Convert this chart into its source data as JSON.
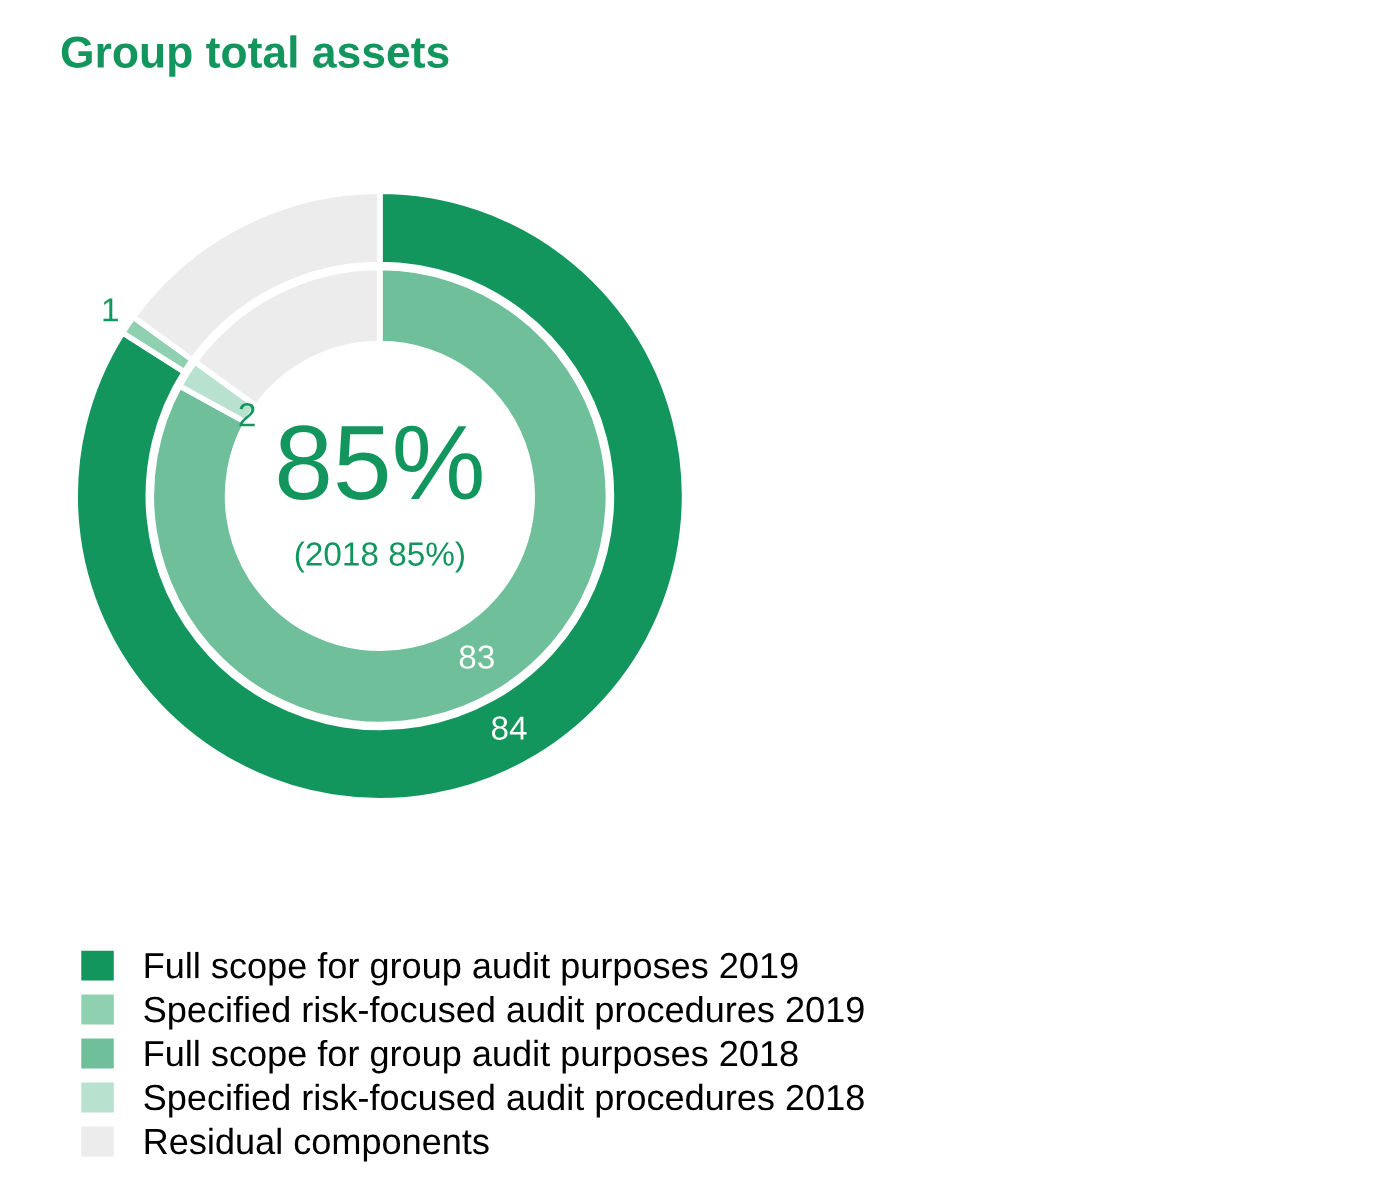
{
  "chart_data": {
    "type": "donut",
    "title": "Group total assets",
    "categories": [
      "Full scope for group audit purposes 2019",
      "Specified risk-focused audit procedures 2019",
      "Full scope for group audit purposes 2018",
      "Specified risk-focused audit procedures 2018",
      "Residual components"
    ],
    "colors": [
      "#12965e",
      "#8fd0b0",
      "#6fbf9a",
      "#b8e2cf",
      "#ececec"
    ],
    "series": [
      {
        "values": [
          null,
          null,
          83,
          2,
          15
        ],
        "value_labels": [
          null,
          null,
          "83",
          "2",
          null
        ]
      },
      {
        "values": [
          84,
          1,
          null,
          null,
          15
        ],
        "value_labels": [
          "84",
          "1",
          null,
          null,
          null
        ]
      }
    ],
    "annotations": [
      "85%",
      "(2018 85%)"
    ],
    "legend": "bottom"
  }
}
